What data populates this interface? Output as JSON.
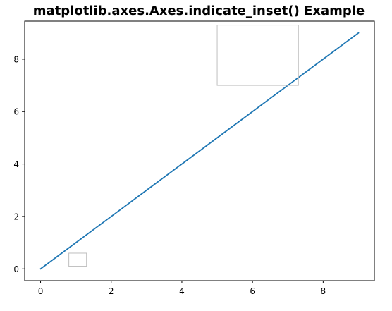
{
  "chart_data": {
    "type": "line",
    "title": "matplotlib.axes.Axes.indicate_inset() Example",
    "xlabel": "",
    "ylabel": "",
    "xlim": [
      -0.45,
      9.45
    ],
    "ylim": [
      -0.45,
      9.45
    ],
    "x_ticks": [
      0,
      2,
      4,
      6,
      8
    ],
    "x_tick_labels": [
      "0",
      "2",
      "4",
      "6",
      "8"
    ],
    "y_ticks": [
      0,
      2,
      4,
      6,
      8
    ],
    "y_tick_labels": [
      "0",
      "2",
      "4",
      "6",
      "8"
    ],
    "grid": false,
    "series": [
      {
        "x": [
          0,
          1,
          2,
          3,
          4,
          5,
          6,
          7,
          8,
          9
        ],
        "y": [
          0,
          1,
          2,
          3,
          4,
          5,
          6,
          7,
          8,
          9
        ],
        "color": "#1f77b4"
      }
    ],
    "inset_indicators": [
      {
        "x0": 0.8,
        "x1": 1.3,
        "y0": 0.1,
        "y1": 0.6,
        "color": "#bfbfbf"
      },
      {
        "x0": 5.0,
        "x1": 7.3,
        "y0": 7.0,
        "y1": 9.3,
        "color": "#bfbfbf"
      }
    ]
  }
}
